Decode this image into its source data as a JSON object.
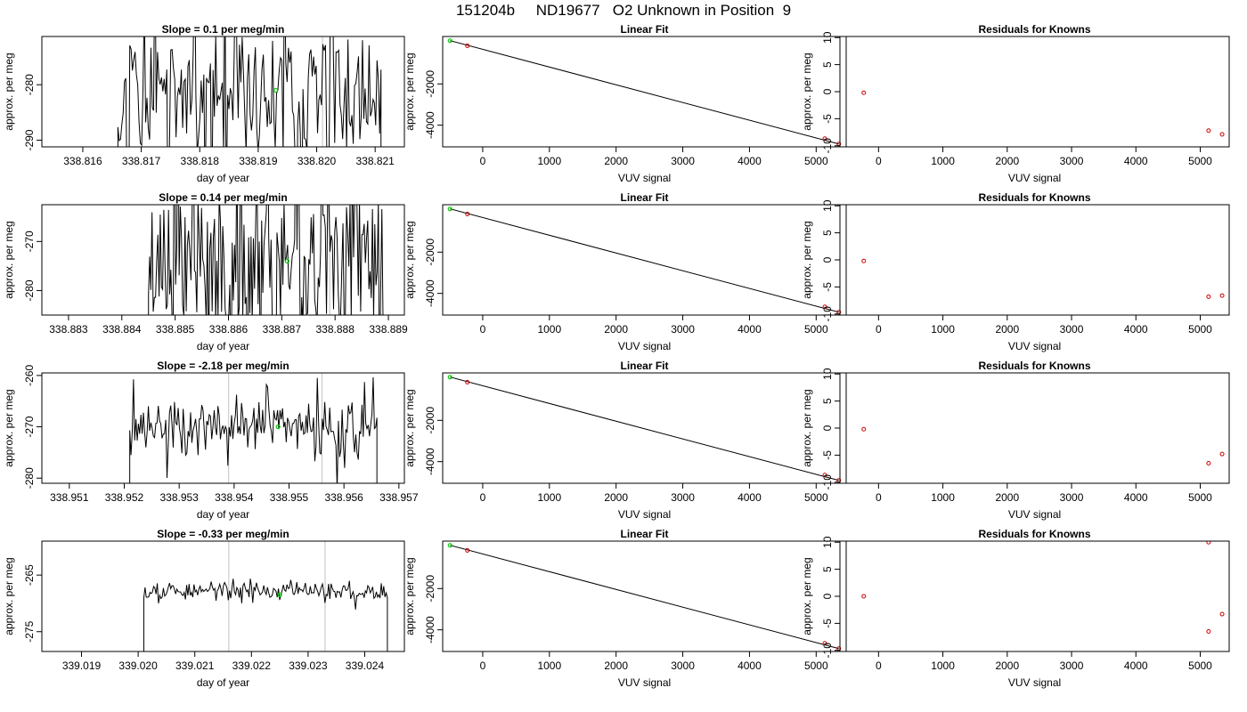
{
  "title": "151204b     ND19677   O2 Unknown in Position  9",
  "colors": {
    "line": "#000000",
    "vline": "#cccccc",
    "fitpoint": "#00cc00",
    "known": "#cc0000"
  },
  "chart_data": [
    {
      "type": "line",
      "title": "Slope =  0.1  per meg/min",
      "xlabel": "day of year",
      "ylabel": "approx. per meg",
      "xlim": [
        338.8153,
        338.8215
      ],
      "ylim": [
        -291.2,
        -271.3
      ],
      "xticks": [
        338.816,
        338.817,
        338.818,
        338.819,
        338.82,
        338.821
      ],
      "xtick_labels": [
        "338.816",
        "338.817",
        "338.818",
        "338.819",
        "338.820",
        "338.821"
      ],
      "yticks": [
        -280,
        -290
      ],
      "ytick_labels": [
        "-280",
        "-290"
      ],
      "series_start": 338.8166,
      "series_end": 338.8211,
      "center": -282.0,
      "amplitude": 10.0,
      "noise": 1.0,
      "seed": 11,
      "gray_lines": [
        338.8184,
        338.8201
      ],
      "green_point": [
        338.8193,
        -281.0
      ]
    },
    {
      "type": "scatter",
      "title": "Linear Fit",
      "xlabel": "VUV signal",
      "ylabel": "approx. per meg",
      "xlim": [
        -600,
        5450
      ],
      "ylim": [
        -5050,
        300
      ],
      "xticks": [
        0,
        1000,
        2000,
        3000,
        4000,
        5000
      ],
      "xtick_labels": [
        "0",
        "1000",
        "2000",
        "3000",
        "4000",
        "5000"
      ],
      "yticks": [
        -2000,
        -4000
      ],
      "ytick_labels": [
        "-2000",
        "-4000"
      ],
      "fit_line": [
        [
          -490,
          98
        ],
        [
          5340,
          -4910
        ]
      ],
      "green_point": [
        -490,
        98
      ],
      "known_points": [
        [
          -230,
          -150
        ],
        [
          5130,
          -4650
        ],
        [
          5340,
          -4910
        ]
      ]
    },
    {
      "type": "scatter",
      "title": "Residuals for Knowns",
      "xlabel": "VUV signal",
      "ylabel": "approx. per meg",
      "xlim": [
        -600,
        5450
      ],
      "ylim": [
        -10.2,
        10.2
      ],
      "xticks": [
        0,
        1000,
        2000,
        3000,
        4000,
        5000
      ],
      "xtick_labels": [
        "0",
        "1000",
        "2000",
        "3000",
        "4000",
        "5000"
      ],
      "yticks": [
        10,
        5,
        0,
        -5,
        -10
      ],
      "ytick_labels": [
        "10",
        "5",
        "0",
        "-5",
        "-10"
      ],
      "points": [
        [
          -230,
          -0.2
        ],
        [
          5130,
          -7.2
        ],
        [
          5340,
          -7.9
        ]
      ]
    },
    {
      "type": "line",
      "title": "Slope =  0.14  per meg/min",
      "xlabel": "day of year",
      "ylabel": "approx. per meg",
      "xlim": [
        338.8825,
        338.8893
      ],
      "ylim": [
        -285.0,
        -262.5
      ],
      "xticks": [
        338.883,
        338.884,
        338.885,
        338.886,
        338.887,
        338.888,
        338.889
      ],
      "xtick_labels": [
        "338.883",
        "338.884",
        "338.885",
        "338.886",
        "338.887",
        "338.888",
        "338.889"
      ],
      "yticks": [
        -270,
        -280
      ],
      "ytick_labels": [
        "-270",
        "-280"
      ],
      "series_start": 338.8845,
      "series_end": 338.8889,
      "center": -274.0,
      "amplitude": 13.0,
      "noise": 1.0,
      "seed": 23,
      "gray_lines": [
        338.8862,
        338.8879
      ],
      "green_point": [
        338.8871,
        -274.0
      ]
    },
    {
      "type": "scatter",
      "title": "Linear Fit",
      "xlabel": "VUV signal",
      "ylabel": "approx. per meg",
      "xlim": [
        -600,
        5450
      ],
      "ylim": [
        -5050,
        300
      ],
      "xticks": [
        0,
        1000,
        2000,
        3000,
        4000,
        5000
      ],
      "xtick_labels": [
        "0",
        "1000",
        "2000",
        "3000",
        "4000",
        "5000"
      ],
      "yticks": [
        -2000,
        -4000
      ],
      "ytick_labels": [
        "-2000",
        "-4000"
      ],
      "fit_line": [
        [
          -490,
          98
        ],
        [
          5340,
          -4910
        ]
      ],
      "green_point": [
        -490,
        98
      ],
      "known_points": [
        [
          -230,
          -150
        ],
        [
          5130,
          -4650
        ],
        [
          5340,
          -4910
        ]
      ]
    },
    {
      "type": "scatter",
      "title": "Residuals for Knowns",
      "xlabel": "VUV signal",
      "ylabel": "approx. per meg",
      "xlim": [
        -600,
        5450
      ],
      "ylim": [
        -10.2,
        10.2
      ],
      "xticks": [
        0,
        1000,
        2000,
        3000,
        4000,
        5000
      ],
      "xtick_labels": [
        "0",
        "1000",
        "2000",
        "3000",
        "4000",
        "5000"
      ],
      "yticks": [
        10,
        5,
        0,
        -5,
        -10
      ],
      "ytick_labels": [
        "10",
        "5",
        "0",
        "-5",
        "-10"
      ],
      "points": [
        [
          -230,
          -0.2
        ],
        [
          5130,
          -6.8
        ],
        [
          5340,
          -6.6
        ]
      ]
    },
    {
      "type": "line",
      "title": "Slope =  -2.18  per meg/min",
      "xlabel": "day of year",
      "ylabel": "approx. per meg",
      "xlim": [
        338.9505,
        338.9571
      ],
      "ylim": [
        -281.0,
        -259.5
      ],
      "xticks": [
        338.951,
        338.952,
        338.953,
        338.954,
        338.955,
        338.956,
        338.957
      ],
      "xtick_labels": [
        "338.951",
        "338.952",
        "338.953",
        "338.954",
        "338.955",
        "338.956",
        "338.957"
      ],
      "yticks": [
        -260,
        -270,
        -280
      ],
      "ytick_labels": [
        "-260",
        "-270",
        "-280"
      ],
      "series_start": 338.9521,
      "series_end": 338.9566,
      "center": -270.0,
      "amplitude": 3.0,
      "noise": 3.0,
      "seed": 37,
      "gray_lines": [
        338.9539,
        338.9556
      ],
      "green_point": [
        338.9548,
        -270.0
      ]
    },
    {
      "type": "scatter",
      "title": "Linear Fit",
      "xlabel": "VUV signal",
      "ylabel": "approx. per meg",
      "xlim": [
        -600,
        5450
      ],
      "ylim": [
        -5050,
        300
      ],
      "xticks": [
        0,
        1000,
        2000,
        3000,
        4000,
        5000
      ],
      "xtick_labels": [
        "0",
        "1000",
        "2000",
        "3000",
        "4000",
        "5000"
      ],
      "yticks": [
        -2000,
        -4000
      ],
      "ytick_labels": [
        "-2000",
        "-4000"
      ],
      "fit_line": [
        [
          -490,
          98
        ],
        [
          5340,
          -4910
        ]
      ],
      "green_point": [
        -490,
        98
      ],
      "known_points": [
        [
          -230,
          -150
        ],
        [
          5130,
          -4650
        ],
        [
          5340,
          -4910
        ]
      ]
    },
    {
      "type": "scatter",
      "title": "Residuals for Knowns",
      "xlabel": "VUV signal",
      "ylabel": "approx. per meg",
      "xlim": [
        -600,
        5450
      ],
      "ylim": [
        -10.2,
        10.2
      ],
      "xticks": [
        0,
        1000,
        2000,
        3000,
        4000,
        5000
      ],
      "xtick_labels": [
        "0",
        "1000",
        "2000",
        "3000",
        "4000",
        "5000"
      ],
      "yticks": [
        10,
        5,
        0,
        -5,
        -10
      ],
      "ytick_labels": [
        "10",
        "5",
        "0",
        "-5",
        "-10"
      ],
      "points": [
        [
          -230,
          -0.2
        ],
        [
          5130,
          -6.5
        ],
        [
          5340,
          -4.8
        ]
      ]
    },
    {
      "type": "line",
      "title": "Slope =  -0.33  per meg/min",
      "xlabel": "day of year",
      "ylabel": "approx. per meg",
      "xlim": [
        339.0183,
        339.0247
      ],
      "ylim": [
        -278.5,
        -259.0
      ],
      "xticks": [
        339.019,
        339.02,
        339.021,
        339.022,
        339.023,
        339.024
      ],
      "xtick_labels": [
        "339.019",
        "339.020",
        "339.021",
        "339.022",
        "339.023",
        "339.024"
      ],
      "yticks": [
        -265,
        -275
      ],
      "ytick_labels": [
        "-265",
        "-275"
      ],
      "series_start": 339.0201,
      "series_end": 339.0244,
      "center": -267.8,
      "amplitude": 0.8,
      "noise": 1.0,
      "seed": 53,
      "gray_lines": [
        339.0216,
        339.0233
      ],
      "green_point": [
        339.0225,
        -268.5
      ]
    },
    {
      "type": "scatter",
      "title": "Linear Fit",
      "xlabel": "VUV signal",
      "ylabel": "approx. per meg",
      "xlim": [
        -600,
        5450
      ],
      "ylim": [
        -5050,
        300
      ],
      "xticks": [
        0,
        1000,
        2000,
        3000,
        4000,
        5000
      ],
      "xtick_labels": [
        "0",
        "1000",
        "2000",
        "3000",
        "4000",
        "5000"
      ],
      "yticks": [
        -2000,
        -4000
      ],
      "ytick_labels": [
        "-2000",
        "-4000"
      ],
      "fit_line": [
        [
          -490,
          98
        ],
        [
          5340,
          -4910
        ]
      ],
      "green_point": [
        -490,
        98
      ],
      "known_points": [
        [
          -230,
          -150
        ],
        [
          5130,
          -4650
        ],
        [
          5340,
          -4910
        ]
      ]
    },
    {
      "type": "scatter",
      "title": "Residuals for Knowns",
      "xlabel": "VUV signal",
      "ylabel": "approx. per meg",
      "xlim": [
        -600,
        5450
      ],
      "ylim": [
        -10.2,
        10.2
      ],
      "xticks": [
        0,
        1000,
        2000,
        3000,
        4000,
        5000
      ],
      "xtick_labels": [
        "0",
        "1000",
        "2000",
        "3000",
        "4000",
        "5000"
      ],
      "yticks": [
        10,
        5,
        0,
        -5,
        -10
      ],
      "ytick_labels": [
        "10",
        "5",
        "0",
        "-5",
        "-10"
      ],
      "points": [
        [
          -230,
          0.0
        ],
        [
          5130,
          10.0
        ],
        [
          5130,
          -6.5
        ],
        [
          5340,
          -3.3
        ]
      ]
    }
  ]
}
